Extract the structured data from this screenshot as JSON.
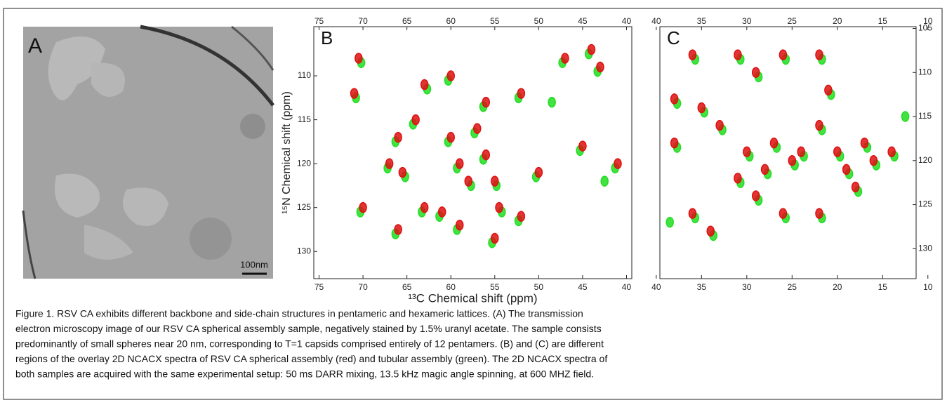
{
  "panel_a": {
    "label": "A",
    "scale_bar": "100nm"
  },
  "chart_data": [
    {
      "type": "scatter",
      "title": "B",
      "x_label": "¹³C Chemical shift (ppm)",
      "y_label": "¹⁵N Chemical shift (ppm)",
      "xlim": [
        75.6,
        39.4
      ],
      "ylim": [
        104.4,
        133.1
      ],
      "xticks": [
        75,
        70,
        65,
        60,
        55,
        50,
        45,
        40
      ],
      "yticks": [
        110,
        115,
        120,
        125,
        130
      ],
      "series": [
        {
          "color": "#22dd22",
          "x": [
            70.2,
            70.8,
            66.3,
            67.2,
            65.2,
            64.3,
            62.7,
            60.3,
            59.3,
            57.7,
            57.3,
            56.3,
            54.8,
            54.2,
            56.3,
            61.3,
            59.3,
            63.3,
            66.3,
            70.3,
            52.3,
            50.3,
            47.3,
            44.3,
            43.3,
            45.3,
            41.3,
            52.3,
            55.3,
            60.3,
            48.5,
            42.5
          ],
          "y": [
            108.5,
            112.5,
            117.5,
            120.5,
            121.5,
            115.5,
            111.5,
            117.5,
            120.5,
            122.5,
            116.5,
            119.5,
            122.5,
            125.5,
            113.5,
            126.0,
            127.5,
            125.5,
            128.0,
            125.5,
            126.5,
            121.5,
            108.5,
            107.5,
            109.5,
            118.5,
            120.5,
            112.5,
            129.0,
            110.5,
            113.0,
            122.0
          ]
        },
        {
          "color": "#dd1111",
          "x": [
            70.5,
            71,
            66,
            67,
            65.5,
            64,
            63,
            60,
            59,
            58,
            57,
            56,
            55,
            54.5,
            56,
            61,
            59,
            63,
            66,
            70,
            52,
            50,
            47,
            44,
            43,
            45,
            41,
            52,
            55,
            60
          ],
          "y": [
            108,
            112,
            117,
            120,
            121,
            115,
            111,
            117,
            120,
            122,
            116,
            119,
            122,
            125,
            113,
            125.5,
            127,
            125,
            127.5,
            125,
            126,
            121,
            108,
            107,
            109,
            118,
            120,
            112,
            128.5,
            110
          ]
        }
      ]
    },
    {
      "type": "scatter",
      "title": "C",
      "xlim": [
        39.6,
        11.3
      ],
      "ylim": [
        104.8,
        133.4
      ],
      "xticks": [
        40,
        35,
        30,
        25,
        20,
        15,
        10
      ],
      "yticks": [
        105,
        110,
        115,
        120,
        125,
        130
      ],
      "series": [
        {
          "color": "#22dd22",
          "x": [
            34.7,
            32.7,
            29.7,
            27.7,
            26.7,
            24.7,
            21.7,
            19.7,
            18.7,
            17.7,
            16.7,
            37.7,
            35.7,
            33.7,
            30.7,
            28.7,
            25.7,
            21.7,
            23.7,
            20.7,
            15.7,
            35.7,
            30.7,
            25.7,
            21.7,
            37.7,
            13.7,
            28.7,
            38.5,
            12.5
          ],
          "y": [
            114.5,
            116.5,
            119.5,
            121.5,
            118.5,
            120.5,
            116.5,
            119.5,
            121.5,
            123.5,
            118.5,
            118.5,
            126.5,
            128.5,
            122.5,
            124.5,
            126.5,
            126.5,
            119.5,
            112.5,
            120.5,
            108.5,
            108.5,
            108.5,
            108.5,
            113.5,
            119.5,
            110.5,
            127,
            115
          ]
        },
        {
          "color": "#dd1111",
          "x": [
            35,
            33,
            30,
            28,
            27,
            25,
            22,
            20,
            19,
            18,
            17,
            38,
            36,
            34,
            31,
            29,
            26,
            22,
            24,
            21,
            16,
            36,
            31,
            26,
            22,
            38,
            14,
            29
          ],
          "y": [
            114,
            116,
            119,
            121,
            118,
            120,
            116,
            119,
            121,
            123,
            118,
            118,
            126,
            128,
            122,
            124,
            126,
            126,
            119,
            112,
            120,
            108,
            108,
            108,
            108,
            113,
            119,
            110
          ]
        }
      ]
    }
  ],
  "caption": [
    "Figure 1. RSV CA exhibits different backbone and side-chain structures in pentameric and hexameric lattices. (A) The transmission",
    "electron microscopy image of our RSV CA spherical assembly sample, negatively stained by 1.5% uranyl acetate. The sample consists",
    "predominantly of small spheres near 20 nm, corresponding to T=1 capsids comprised entirely of 12 pentamers. (B) and (C) are different",
    "regions of the overlay 2D NCACX spectra of RSV CA spherical assembly (red) and tubular assembly (green). The 2D NCACX spectra of",
    "both samples are acquired with the same experimental setup: 50 ms DARR mixing, 13.5 kHz magic angle spinning, at 600 MHZ field."
  ]
}
